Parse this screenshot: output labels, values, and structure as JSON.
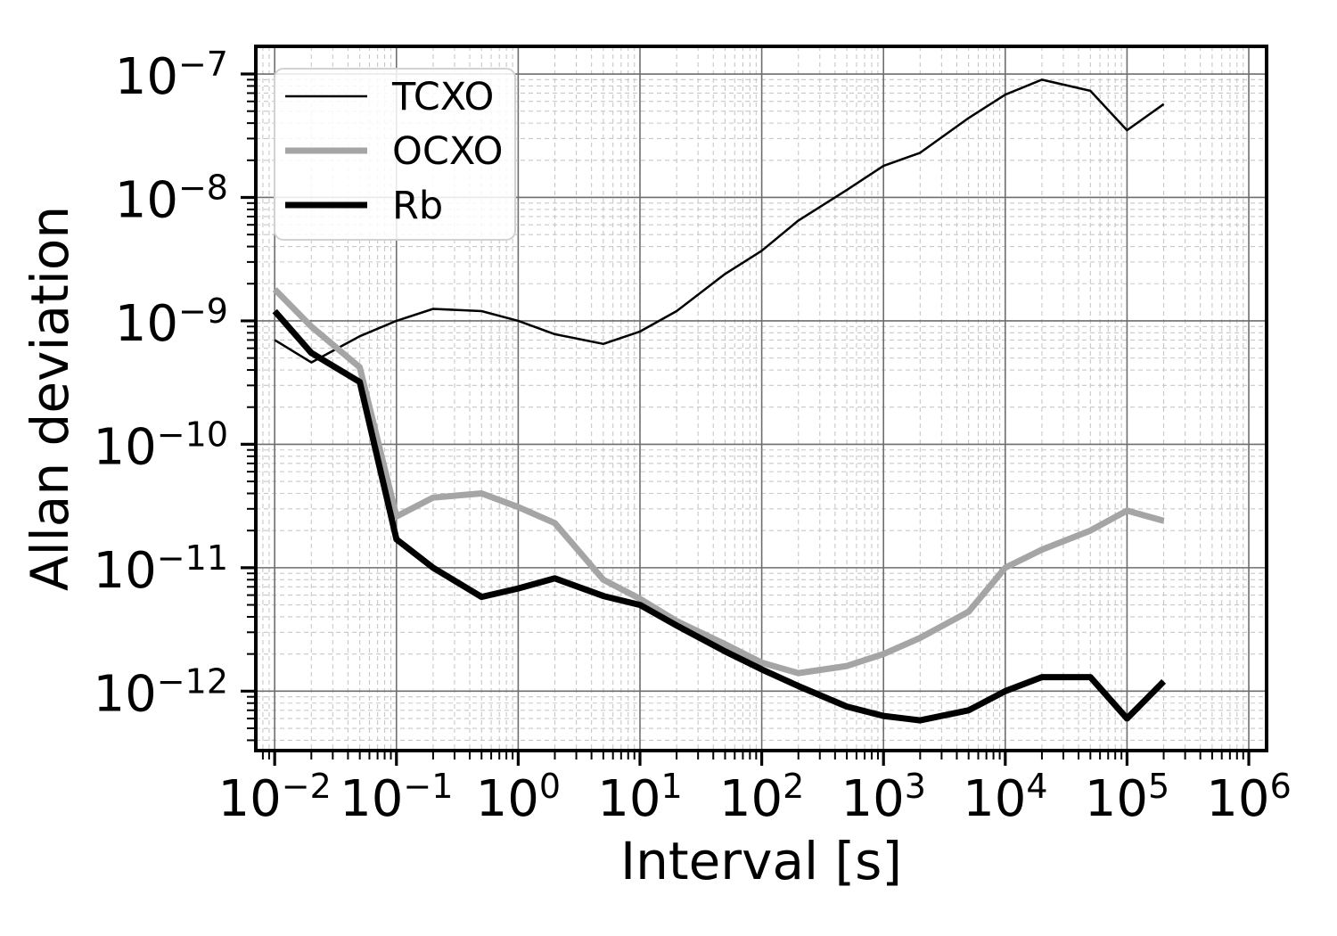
{
  "figure": {
    "background": "#ffffff",
    "spine_color": "#000000",
    "grid_major_color": "#6e6e6e",
    "grid_minor_color": "#c8c8c8",
    "tick_label_base": "10",
    "x_tick_exponents": [
      "−2",
      "−1",
      "0",
      "1",
      "2",
      "3",
      "4",
      "5",
      "6"
    ],
    "y_tick_exponents": [
      "−7",
      "−8",
      "−9",
      "−10",
      "−11",
      "−12"
    ],
    "legend": {
      "items": [
        "TCXO",
        "OCXO",
        "Rb"
      ]
    }
  },
  "chart_data": {
    "type": "line",
    "title": "",
    "xlabel": "Interval [s]",
    "ylabel": "Allan deviation",
    "x_scale": "log",
    "y_scale": "log",
    "xlim": [
      0.007,
      1400000
    ],
    "ylim": [
      3.3e-13,
      1.675e-07
    ],
    "grid": "major-solid, minor-dashed",
    "legend_position": "upper-left",
    "x": [
      0.01,
      0.02,
      0.05,
      0.1,
      0.2,
      0.5,
      1,
      2,
      5,
      10,
      20,
      50,
      100,
      200,
      500,
      1000,
      2000,
      5000,
      10000,
      20000,
      50000,
      100000,
      200000
    ],
    "series": [
      {
        "name": "TCXO",
        "color": "#000000",
        "line_width": 2.5,
        "values": [
          7e-10,
          4.6e-10,
          7.5e-10,
          1e-09,
          1.25e-09,
          1.2e-09,
          1e-09,
          7.8e-10,
          6.5e-10,
          8.2e-10,
          1.2e-09,
          2.4e-09,
          3.7e-09,
          6.5e-09,
          1.15e-08,
          1.8e-08,
          2.3e-08,
          4.4e-08,
          6.8e-08,
          9e-08,
          7.3e-08,
          3.5e-08,
          5.7e-08
        ]
      },
      {
        "name": "OCXO",
        "color": "#a5a5a5",
        "line_width": 7,
        "values": [
          1.8e-09,
          9e-10,
          4.2e-10,
          2.6e-11,
          3.7e-11,
          4e-11,
          3.1e-11,
          2.3e-11,
          8e-12,
          5.6e-12,
          3.7e-12,
          2.4e-12,
          1.7e-12,
          1.4e-12,
          1.6e-12,
          2e-12,
          2.7e-12,
          4.4e-12,
          1e-11,
          1.4e-11,
          2e-11,
          2.9e-11,
          2.4e-11
        ]
      },
      {
        "name": "Rb",
        "color": "#000000",
        "line_width": 7,
        "values": [
          1.2e-09,
          5.5e-10,
          3.2e-10,
          1.7e-11,
          1e-11,
          5.8e-12,
          6.8e-12,
          8.2e-12,
          5.9e-12,
          5e-12,
          3.4e-12,
          2.1e-12,
          1.5e-12,
          1.1e-12,
          7.5e-13,
          6.3e-13,
          5.8e-13,
          7e-13,
          1e-12,
          1.3e-12,
          1.3e-12,
          6e-13,
          1.2e-12
        ]
      }
    ]
  }
}
